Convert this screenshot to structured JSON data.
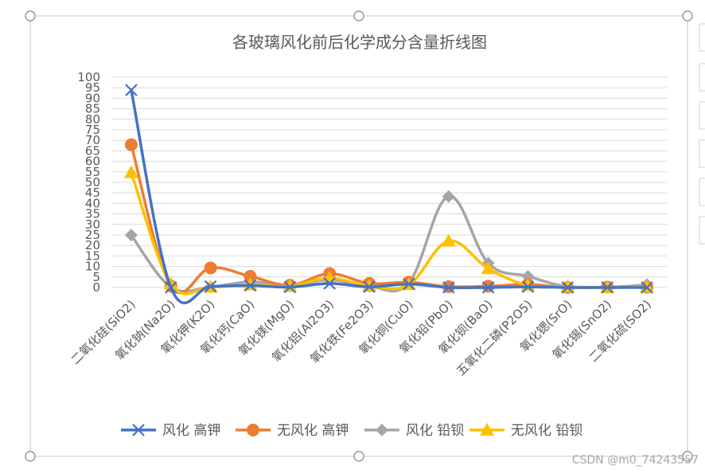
{
  "chart_data": {
    "type": "line",
    "title": "各玻璃风化前后化学成分含量折线图",
    "categories": [
      "二氧化硅(SiO2)",
      "氧化钠(Na2O)",
      "氧化钾(K2O)",
      "氧化钙(CaO)",
      "氧化镁(MgO)",
      "氧化铝(Al2O3)",
      "氧化铁(Fe2O3)",
      "氧化铜(CuO)",
      "氧化铅(PbO)",
      "氧化钡(BaO)",
      "五氧化二磷(P2O5)",
      "氧化锶(SrO)",
      "氧化锡(SnO2)",
      "二氧化硫(SO2)"
    ],
    "ylim": [
      0,
      100
    ],
    "yticks": [
      0,
      5,
      10,
      15,
      20,
      25,
      30,
      35,
      40,
      45,
      50,
      55,
      60,
      65,
      70,
      75,
      80,
      85,
      90,
      95,
      100
    ],
    "grid": true,
    "legend_position": "bottom",
    "series": [
      {
        "name": "风化 高钾",
        "color": "#4472c4",
        "marker": "x",
        "values": [
          93.9,
          0.0,
          0.5,
          0.9,
          0.2,
          1.9,
          0.3,
          1.6,
          0.0,
          0.0,
          0.3,
          0.0,
          0.0,
          0.0
        ]
      },
      {
        "name": "无风化 高钾",
        "color": "#ed7d31",
        "marker": "circle",
        "values": [
          67.9,
          0.7,
          9.3,
          5.3,
          1.1,
          6.6,
          1.9,
          2.5,
          0.4,
          0.6,
          1.4,
          0.0,
          0.2,
          0.1
        ]
      },
      {
        "name": "风化 铅钡",
        "color": "#a5a5a5",
        "marker": "diamond",
        "values": [
          24.9,
          0.2,
          0.2,
          2.7,
          0.7,
          3.7,
          0.5,
          2.3,
          43.3,
          11.6,
          5.3,
          0.4,
          0.1,
          1.3
        ]
      },
      {
        "name": "无风化 铅钡",
        "color": "#ffc000",
        "marker": "triangle",
        "values": [
          54.7,
          1.7,
          0.2,
          1.3,
          0.6,
          4.5,
          0.7,
          1.4,
          22.1,
          9.0,
          1.0,
          0.3,
          0.0,
          0.2
        ]
      }
    ]
  },
  "watermark": "CSDN @m0_74243557"
}
